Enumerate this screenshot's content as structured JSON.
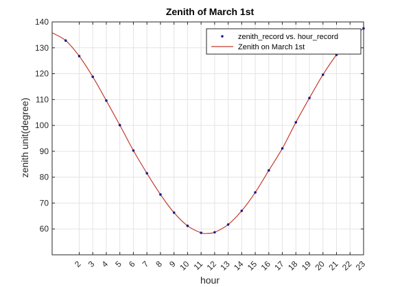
{
  "chart_data": {
    "type": "line",
    "title": "Zenith of March 1st",
    "xlabel": "hour",
    "ylabel": "zenith unit(degree)",
    "xlim": [
      0,
      23
    ],
    "ylim": [
      50,
      140
    ],
    "x_ticks": [
      2,
      3,
      4,
      5,
      6,
      7,
      8,
      9,
      10,
      11,
      12,
      13,
      14,
      15,
      16,
      17,
      18,
      19,
      20,
      21,
      22,
      23
    ],
    "y_ticks": [
      60,
      70,
      80,
      90,
      100,
      110,
      120,
      130,
      140
    ],
    "grid": true,
    "legend_position": "top-right",
    "series": [
      {
        "name": "zenith_record vs. hour_record",
        "kind": "markers",
        "color": "#1a1a8c",
        "x": [
          1,
          2,
          3,
          4,
          5,
          6,
          7,
          8,
          9,
          10,
          11,
          12,
          13,
          14,
          15,
          16,
          17,
          18,
          19,
          20,
          21,
          22,
          23
        ],
        "y": [
          132.8,
          126.8,
          118.8,
          109.6,
          100.1,
          90.3,
          81.5,
          73.3,
          66.3,
          61.2,
          58.5,
          58.7,
          61.7,
          67.0,
          74.1,
          82.6,
          91.1,
          101.2,
          110.6,
          119.6,
          127.3,
          133.4,
          137.5
        ]
      },
      {
        "name": "Zenith on March 1st",
        "kind": "line",
        "color": "#c0392b",
        "x": [
          0,
          1,
          2,
          3,
          4,
          5,
          6,
          7,
          8,
          9,
          10,
          11,
          11.5,
          12,
          13,
          14,
          15,
          16,
          17,
          18,
          19,
          20,
          21,
          22,
          23
        ],
        "y": [
          135.8,
          132.8,
          126.8,
          118.8,
          109.6,
          100.1,
          90.3,
          81.5,
          73.3,
          66.3,
          61.2,
          58.5,
          58.3,
          58.7,
          61.7,
          67.0,
          74.1,
          82.6,
          91.1,
          101.2,
          110.6,
          119.6,
          127.3,
          133.4,
          137.5
        ]
      }
    ]
  }
}
